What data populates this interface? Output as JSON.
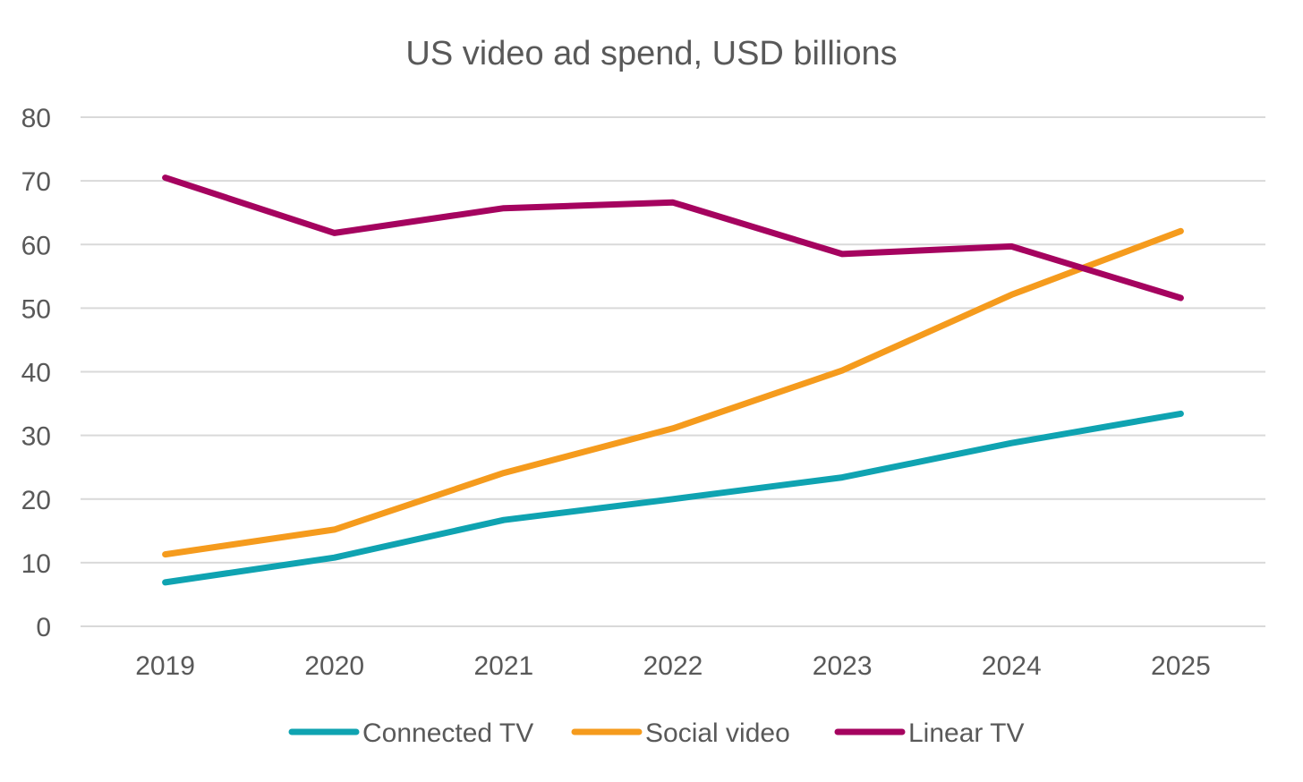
{
  "chart_data": {
    "type": "line",
    "title": "US video ad spend, USD billions",
    "xlabel": "",
    "ylabel": "",
    "categories": [
      "2019",
      "2020",
      "2021",
      "2022",
      "2023",
      "2024",
      "2025"
    ],
    "ylim": [
      0,
      80
    ],
    "yticks": [
      0,
      10,
      20,
      30,
      40,
      50,
      60,
      70,
      80
    ],
    "ytick_labels": [
      "0",
      "10",
      "20",
      "30",
      "40",
      "50",
      "60",
      "70",
      "80"
    ],
    "grid": true,
    "legend_position": "bottom",
    "series": [
      {
        "name": "Connected TV",
        "color": "#0fa3b1",
        "values": [
          6.9,
          10.8,
          16.7,
          20.0,
          23.4,
          28.8,
          33.4
        ]
      },
      {
        "name": "Social video",
        "color": "#f59b1d",
        "values": [
          11.3,
          15.2,
          24.1,
          31.1,
          40.2,
          52.1,
          62.1
        ]
      },
      {
        "name": "Linear TV",
        "color": "#a5035f",
        "values": [
          70.5,
          61.8,
          65.7,
          66.6,
          58.5,
          59.7,
          51.6
        ]
      }
    ]
  }
}
